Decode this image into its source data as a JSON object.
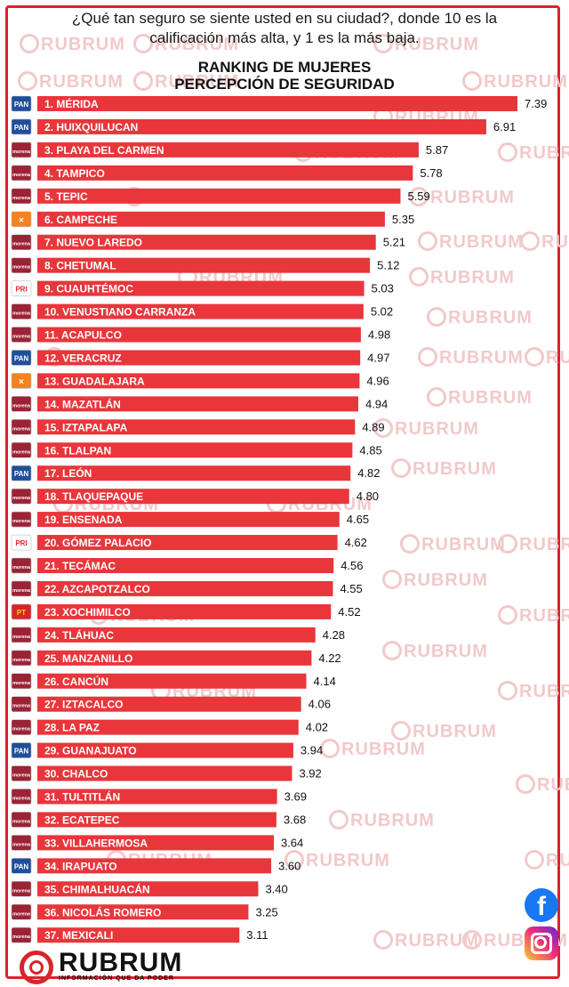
{
  "header": {
    "question_line1": "¿Qué tan seguro se siente usted en su ciudad?, donde 10 es la",
    "question_line2": "calificación más alta, y  1 es la más baja.",
    "title_line1": "RANKING DE MUJERES",
    "title_line2": "PERCEPCIÓN DE SEGURIDAD"
  },
  "watermark": "RUBRUM",
  "brand": {
    "name": "RUBRUM",
    "tagline": "INFORMACIÓN QUE DA PODER"
  },
  "social": {
    "facebook_glyph": "f"
  },
  "colors": {
    "bar": "#e8363b",
    "bar_text": "#ffffff",
    "value_text": "#111111",
    "frame": "#d7252a"
  },
  "party_styles": {
    "PAN": {
      "label": "PAN",
      "bg": "#1f4e9c",
      "fg": "#ffffff"
    },
    "morena": {
      "label": "morena",
      "bg": "#9b2335",
      "fg": "#ffffff"
    },
    "MC": {
      "label": "✕",
      "bg": "#f58220",
      "fg": "#ffffff"
    },
    "PRI": {
      "label": "PRI",
      "bg": "#ffffff",
      "fg": "#d7252a"
    },
    "PT": {
      "label": "PT",
      "bg": "#d7252a",
      "fg": "#ffd200"
    }
  },
  "chart_data": {
    "type": "bar",
    "orientation": "horizontal",
    "title": "RANKING DE MUJERES PERCEPCIÓN DE SEGURIDAD",
    "xlim": [
      0,
      7.39
    ],
    "grid": false,
    "categories": [
      "1. MÉRIDA",
      "2. HUIXQUILUCAN",
      "3. PLAYA DEL CARMEN",
      "4. TAMPICO",
      "5. TEPIC",
      "6. CAMPECHE",
      "7. NUEVO LAREDO",
      "8. CHETUMAL",
      "9. CUAUHTÉMOC",
      "10. VENUSTIANO CARRANZA",
      "11. ACAPULCO",
      "12. VERACRUZ",
      "13. GUADALAJARA",
      "14. MAZATLÁN",
      "15. IZTAPALAPA",
      "16. TLALPAN",
      "17. LEÓN",
      "18. TLAQUEPAQUE",
      "19. ENSENADA",
      "20. GÓMEZ PALACIO",
      "21. TECÁMAC",
      "22. AZCAPOTZALCO",
      "23. XOCHIMILCO",
      "24. TLÁHUAC",
      "25. MANZANILLO",
      "26. CANCÚN",
      "27. IZTACALCO",
      "28. LA PAZ",
      "29. GUANAJUATO",
      "30. CHALCO",
      "31. TULTITLÁN",
      "32. ECATEPEC",
      "33. VILLAHERMOSA",
      "34. IRAPUATO",
      "35. CHIMALHUACÁN",
      "36. NICOLÁS ROMERO",
      "37. MEXICALI"
    ],
    "values": [
      7.39,
      6.91,
      5.87,
      5.78,
      5.59,
      5.35,
      5.21,
      5.12,
      5.03,
      5.02,
      4.98,
      4.97,
      4.96,
      4.94,
      4.89,
      4.85,
      4.82,
      4.8,
      4.65,
      4.62,
      4.56,
      4.55,
      4.52,
      4.28,
      4.22,
      4.14,
      4.06,
      4.02,
      3.94,
      3.92,
      3.69,
      3.68,
      3.64,
      3.6,
      3.4,
      3.25,
      3.11
    ],
    "value_labels": [
      "7.39",
      "6.91",
      "5.87",
      "5.78",
      "5.59",
      "5.35",
      "5.21",
      "5.12",
      "5.03",
      "5.02",
      "4.98",
      "4.97",
      "4.96",
      "4.94",
      "4.89",
      "4.85",
      "4.82",
      "4.80",
      "4.65",
      "4.62",
      "4.56",
      "4.55",
      "4.52",
      "4.28",
      "4.22",
      "4.14",
      "4.06",
      "4.02",
      "3.94",
      "3.92",
      "3.69",
      "3.68",
      "3.64",
      "3.60",
      "3.40",
      "3.25",
      "3.11"
    ],
    "parties": [
      "PAN",
      "PAN",
      "morena",
      "morena",
      "morena",
      "MC",
      "morena",
      "morena",
      "PRI",
      "morena",
      "morena",
      "PAN",
      "MC",
      "morena",
      "morena",
      "morena",
      "PAN",
      "morena",
      "morena",
      "PRI",
      "morena",
      "morena",
      "PT",
      "morena",
      "morena",
      "morena",
      "morena",
      "morena",
      "PAN",
      "morena",
      "morena",
      "morena",
      "morena",
      "PAN",
      "morena",
      "morena",
      "morena"
    ]
  }
}
